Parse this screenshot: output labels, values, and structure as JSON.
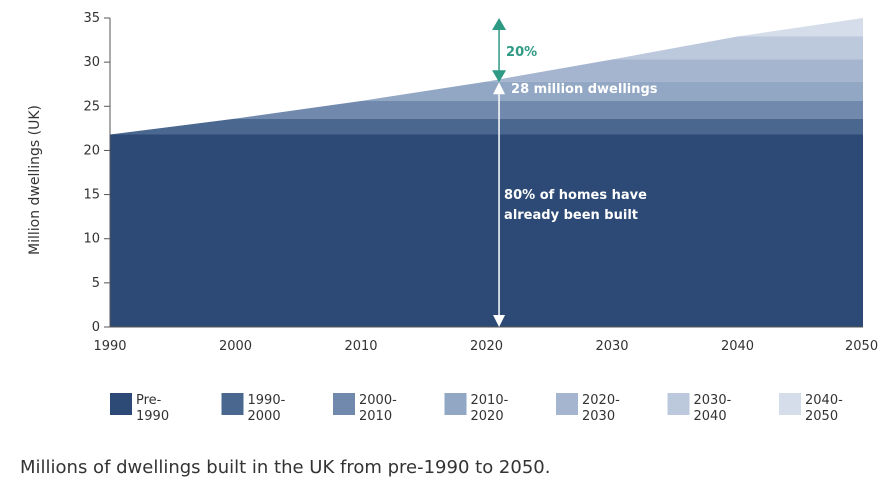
{
  "chart_data": {
    "type": "area",
    "ylabel": "Million dwellings (UK)",
    "xlim": [
      1990,
      2050
    ],
    "ylim": [
      0,
      35
    ],
    "x_ticks": [
      "1990",
      "2000",
      "2010",
      "2020",
      "2030",
      "2040",
      "2050"
    ],
    "y_ticks": [
      "0",
      "5",
      "10",
      "15",
      "20",
      "25",
      "30",
      "35"
    ],
    "grid": "horizontal",
    "legend_position": "bottom",
    "series": [
      {
        "name": "Pre-\n1990",
        "color": "#2d4a76",
        "start": 1990,
        "end": 1990,
        "increment": 21.8
      },
      {
        "name": "1990-\n2000",
        "color": "#4a6790",
        "start": 1990,
        "end": 2000,
        "increment": 1.8
      },
      {
        "name": "2000-\n2010",
        "color": "#7189ad",
        "start": 2000,
        "end": 2010,
        "increment": 2.0
      },
      {
        "name": "2010-\n2020",
        "color": "#92a7c3",
        "start": 2010,
        "end": 2020,
        "increment": 2.2
      },
      {
        "name": "2020-\n2030",
        "color": "#a5b5cf",
        "start": 2020,
        "end": 2030,
        "increment": 2.5
      },
      {
        "name": "2030-\n2040",
        "color": "#bcc8dc",
        "start": 2030,
        "end": 2040,
        "increment": 2.6
      },
      {
        "name": "2040-\n2050",
        "color": "#d4dde9",
        "start": 2040,
        "end": 2050,
        "increment": 2.1
      }
    ],
    "annotations": {
      "growth_pct": "20%",
      "dwellings_2021": "28 million dwellings",
      "already_built_line1": "80% of homes have",
      "already_built_line2": "already been built",
      "marker_year": 2021,
      "marker_low": 0,
      "marker_mid": 27.5,
      "marker_top": 35,
      "accent_color": "#2e9a84"
    }
  },
  "caption": "Millions of dwellings built in the UK from pre-1990 to 2050."
}
